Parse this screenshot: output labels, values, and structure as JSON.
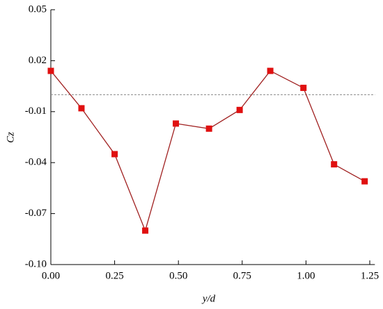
{
  "chart_data": {
    "type": "line",
    "x_label": "y/d",
    "y_label": "Cz",
    "x": [
      0,
      0.12,
      0.25,
      0.37,
      0.49,
      0.62,
      0.74,
      0.86,
      0.99,
      1.11,
      1.23
    ],
    "series": [
      {
        "color": "#a02020",
        "marker_color": "#e01010",
        "values": [
          0.014,
          -0.008,
          -0.035,
          -0.08,
          -0.017,
          -0.02,
          -0.009,
          0.014,
          0.004,
          -0.041,
          -0.051
        ]
      }
    ],
    "reference_line": 0,
    "xlim": [
      0,
      1.27
    ],
    "ylim": [
      -0.1,
      0.05
    ],
    "xticks": [
      {
        "value": 0,
        "label": "0.00"
      },
      0.25,
      {
        "value": 0.5,
        "label": "0.50"
      },
      0.75,
      {
        "value": 1,
        "label": "1.00"
      },
      1.25
    ],
    "yticks": [
      0.05,
      0.02,
      -0.01,
      -0.04,
      -0.07,
      {
        "value": -0.1,
        "label": "-0.10"
      }
    ]
  }
}
